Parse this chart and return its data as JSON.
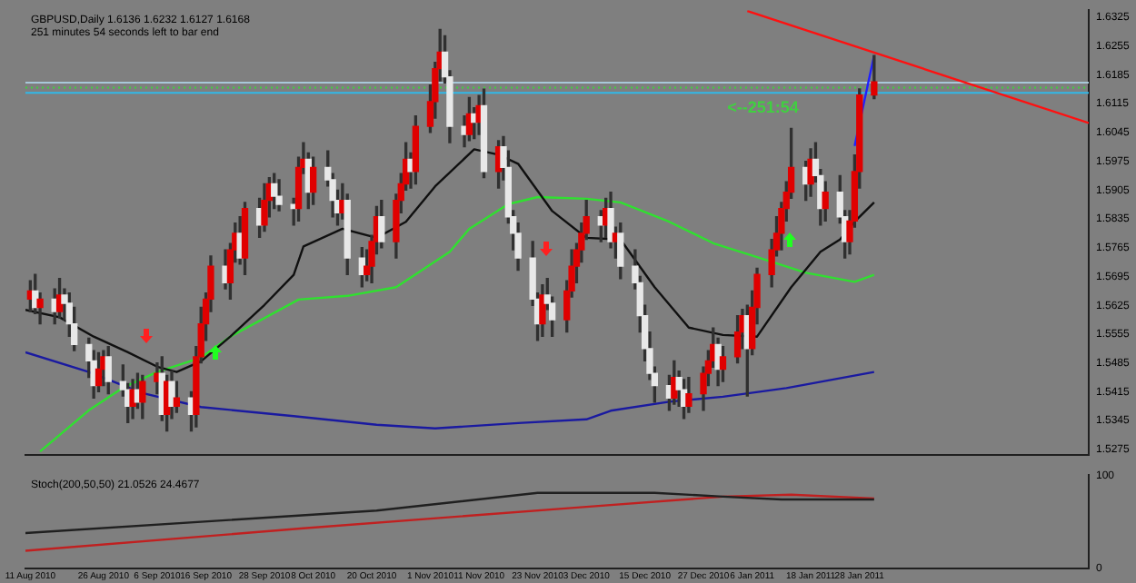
{
  "chart_data": [
    {
      "type": "candlestick",
      "title": "GBPUSD,Daily 1.6136 1.6232 1.6127 1.6168",
      "subtitle": "251 minutes 54 seconds left to bar end",
      "x": [
        "2010-08-11",
        "2010-08-12",
        "2010-08-13",
        "2010-08-16",
        "2010-08-17",
        "2010-08-18",
        "2010-08-19",
        "2010-08-20",
        "2010-08-23",
        "2010-08-24",
        "2010-08-25",
        "2010-08-26",
        "2010-08-27",
        "2010-08-30",
        "2010-08-31",
        "2010-09-01",
        "2010-09-02",
        "2010-09-03",
        "2010-09-06",
        "2010-09-07",
        "2010-09-08",
        "2010-09-09",
        "2010-09-10",
        "2010-09-13",
        "2010-09-14",
        "2010-09-15",
        "2010-09-16",
        "2010-09-17",
        "2010-09-20",
        "2010-09-21",
        "2010-09-22",
        "2010-09-23",
        "2010-09-24",
        "2010-09-27",
        "2010-09-28",
        "2010-09-29",
        "2010-09-30",
        "2010-10-01",
        "2010-10-04",
        "2010-10-05",
        "2010-10-06",
        "2010-10-07",
        "2010-10-08",
        "2010-10-11",
        "2010-10-12",
        "2010-10-13",
        "2010-10-14",
        "2010-10-15",
        "2010-10-18",
        "2010-10-19",
        "2010-10-20",
        "2010-10-21",
        "2010-10-22",
        "2010-10-25",
        "2010-10-26",
        "2010-10-27",
        "2010-10-28",
        "2010-10-29",
        "2010-11-01",
        "2010-11-02",
        "2010-11-03",
        "2010-11-04",
        "2010-11-05",
        "2010-11-08",
        "2010-11-09",
        "2010-11-10",
        "2010-11-11",
        "2010-11-12",
        "2010-11-15",
        "2010-11-16",
        "2010-11-17",
        "2010-11-18",
        "2010-11-19",
        "2010-11-22",
        "2010-11-23",
        "2010-11-24",
        "2010-11-25",
        "2010-11-26",
        "2010-11-29",
        "2010-11-30",
        "2010-12-01",
        "2010-12-02",
        "2010-12-03",
        "2010-12-06",
        "2010-12-07",
        "2010-12-08",
        "2010-12-09",
        "2010-12-10",
        "2010-12-13",
        "2010-12-14",
        "2010-12-15",
        "2010-12-16",
        "2010-12-17",
        "2010-12-20",
        "2010-12-21",
        "2010-12-22",
        "2010-12-23",
        "2010-12-24",
        "2010-12-27",
        "2010-12-28",
        "2010-12-29",
        "2010-12-30",
        "2010-12-31",
        "2011-01-03",
        "2011-01-04",
        "2011-01-05",
        "2011-01-06",
        "2011-01-07",
        "2011-01-10",
        "2011-01-11",
        "2011-01-12",
        "2011-01-13",
        "2011-01-14",
        "2011-01-17",
        "2011-01-18",
        "2011-01-19",
        "2011-01-20",
        "2011-01-21",
        "2011-01-24",
        "2011-01-25",
        "2011-01-26",
        "2011-01-27",
        "2011-01-28",
        "2011-01-31"
      ],
      "ohlc": [
        [
          1.564,
          1.5685,
          1.561,
          1.566
        ],
        [
          1.566,
          1.57,
          1.5605,
          1.562
        ],
        [
          1.562,
          1.5655,
          1.558,
          1.564
        ],
        [
          1.564,
          1.5665,
          1.558,
          1.561
        ],
        [
          1.561,
          1.569,
          1.5595,
          1.565
        ],
        [
          1.565,
          1.5665,
          1.559,
          1.563
        ],
        [
          1.563,
          1.5655,
          1.555,
          1.558
        ],
        [
          1.558,
          1.562,
          1.5515,
          1.553
        ],
        [
          1.553,
          1.5545,
          1.545,
          1.549
        ],
        [
          1.549,
          1.5515,
          1.54,
          1.543
        ],
        [
          1.543,
          1.551,
          1.5415,
          1.547
        ],
        [
          1.547,
          1.5515,
          1.543,
          1.55
        ],
        [
          1.55,
          1.5525,
          1.541,
          1.544
        ],
        [
          1.544,
          1.548,
          1.5405,
          1.542
        ],
        [
          1.542,
          1.5435,
          1.534,
          1.538
        ],
        [
          1.538,
          1.5445,
          1.535,
          1.542
        ],
        [
          1.542,
          1.546,
          1.5375,
          1.539
        ],
        [
          1.539,
          1.5455,
          1.535,
          1.544
        ],
        [
          1.544,
          1.5485,
          1.541,
          1.546
        ],
        [
          1.546,
          1.55,
          1.5345,
          1.536
        ],
        [
          1.536,
          1.5455,
          1.532,
          1.544
        ],
        [
          1.544,
          1.5465,
          1.535,
          1.538
        ],
        [
          1.538,
          1.544,
          1.5365,
          1.54
        ],
        [
          1.54,
          1.5415,
          1.532,
          1.536
        ],
        [
          1.536,
          1.5525,
          1.533,
          1.55
        ],
        [
          1.55,
          1.562,
          1.5485,
          1.558
        ],
        [
          1.558,
          1.5655,
          1.554,
          1.564
        ],
        [
          1.564,
          1.5745,
          1.561,
          1.572
        ],
        [
          1.572,
          1.576,
          1.5665,
          1.568
        ],
        [
          1.568,
          1.5775,
          1.564,
          1.576
        ],
        [
          1.576,
          1.5825,
          1.573,
          1.58
        ],
        [
          1.58,
          1.584,
          1.5725,
          1.574
        ],
        [
          1.574,
          1.5875,
          1.57,
          1.586
        ],
        [
          1.586,
          1.5885,
          1.579,
          1.582
        ],
        [
          1.582,
          1.592,
          1.5805,
          1.588
        ],
        [
          1.588,
          1.5935,
          1.584,
          1.592
        ],
        [
          1.592,
          1.5945,
          1.586,
          1.589
        ],
        [
          1.589,
          1.593,
          1.5855,
          1.587
        ],
        [
          1.587,
          1.5885,
          1.582,
          1.586
        ],
        [
          1.586,
          1.5985,
          1.583,
          1.596
        ],
        [
          1.596,
          1.602,
          1.5945,
          1.598
        ],
        [
          1.598,
          1.5995,
          1.586,
          1.59
        ],
        [
          1.59,
          1.5985,
          1.587,
          1.596
        ],
        [
          1.596,
          1.6,
          1.5915,
          1.593
        ],
        [
          1.593,
          1.5945,
          1.584,
          1.588
        ],
        [
          1.588,
          1.5905,
          1.582,
          1.585
        ],
        [
          1.585,
          1.592,
          1.5835,
          1.588
        ],
        [
          1.588,
          1.5895,
          1.57,
          1.574
        ],
        [
          1.574,
          1.5765,
          1.567,
          1.57
        ],
        [
          1.57,
          1.576,
          1.5685,
          1.572
        ],
        [
          1.572,
          1.5795,
          1.568,
          1.578
        ],
        [
          1.578,
          1.5865,
          1.575,
          1.584
        ],
        [
          1.584,
          1.588,
          1.5765,
          1.578
        ],
        [
          1.578,
          1.5895,
          1.574,
          1.588
        ],
        [
          1.588,
          1.5945,
          1.585,
          1.592
        ],
        [
          1.592,
          1.602,
          1.5905,
          1.598
        ],
        [
          1.598,
          1.5995,
          1.591,
          1.595
        ],
        [
          1.595,
          1.6085,
          1.592,
          1.606
        ],
        [
          1.606,
          1.616,
          1.6045,
          1.612
        ],
        [
          1.612,
          1.6215,
          1.608,
          1.62
        ],
        [
          1.62,
          1.6295,
          1.617,
          1.624
        ],
        [
          1.624,
          1.628,
          1.6165,
          1.618
        ],
        [
          1.618,
          1.6195,
          1.602,
          1.606
        ],
        [
          1.606,
          1.6085,
          1.601,
          1.604
        ],
        [
          1.604,
          1.613,
          1.6025,
          1.609
        ],
        [
          1.609,
          1.6105,
          1.603,
          1.607
        ],
        [
          1.607,
          1.6135,
          1.604,
          1.611
        ],
        [
          1.611,
          1.615,
          1.5935,
          1.595
        ],
        [
          1.595,
          1.6025,
          1.591,
          1.601
        ],
        [
          1.601,
          1.6035,
          1.593,
          1.596
        ],
        [
          1.596,
          1.6,
          1.5825,
          1.584
        ],
        [
          1.584,
          1.5855,
          1.576,
          1.58
        ],
        [
          1.58,
          1.5825,
          1.571,
          1.574
        ],
        [
          1.574,
          1.578,
          1.5625,
          1.564
        ],
        [
          1.564,
          1.5655,
          1.554,
          1.558
        ],
        [
          1.558,
          1.5675,
          1.555,
          1.565
        ],
        [
          1.565,
          1.569,
          1.5615,
          1.563
        ],
        [
          1.563,
          1.5645,
          1.555,
          1.559
        ],
        [
          1.559,
          1.5685,
          1.556,
          1.566
        ],
        [
          1.566,
          1.576,
          1.5645,
          1.572
        ],
        [
          1.572,
          1.5775,
          1.568,
          1.576
        ],
        [
          1.576,
          1.5825,
          1.573,
          1.58
        ],
        [
          1.58,
          1.588,
          1.5785,
          1.584
        ],
        [
          1.584,
          1.5855,
          1.578,
          1.582
        ],
        [
          1.582,
          1.5885,
          1.579,
          1.586
        ],
        [
          1.586,
          1.59,
          1.5765,
          1.578
        ],
        [
          1.578,
          1.5815,
          1.574,
          1.58
        ],
        [
          1.58,
          1.5825,
          1.569,
          1.572
        ],
        [
          1.572,
          1.576,
          1.5665,
          1.568
        ],
        [
          1.568,
          1.5695,
          1.556,
          1.56
        ],
        [
          1.56,
          1.5625,
          1.549,
          1.552
        ],
        [
          1.552,
          1.556,
          1.5445,
          1.546
        ],
        [
          1.546,
          1.5475,
          1.539,
          1.543
        ],
        [
          1.543,
          1.5455,
          1.537,
          1.54
        ],
        [
          1.54,
          1.549,
          1.5385,
          1.545
        ],
        [
          1.545,
          1.5465,
          1.538,
          1.542
        ],
        [
          1.542,
          1.5445,
          1.535,
          1.538
        ],
        [
          1.538,
          1.545,
          1.5365,
          1.541
        ],
        [
          1.541,
          1.5475,
          1.537,
          1.546
        ],
        [
          1.546,
          1.5515,
          1.543,
          1.549
        ],
        [
          1.549,
          1.557,
          1.5475,
          1.553
        ],
        [
          1.553,
          1.5545,
          1.543,
          1.547
        ],
        [
          1.547,
          1.5525,
          1.544,
          1.55
        ],
        [
          1.55,
          1.56,
          1.5485,
          1.556
        ],
        [
          1.556,
          1.5615,
          1.552,
          1.56
        ],
        [
          1.56,
          1.5625,
          1.5405,
          1.552
        ],
        [
          1.552,
          1.566,
          1.5505,
          1.562
        ],
        [
          1.562,
          1.5715,
          1.558,
          1.57
        ],
        [
          1.57,
          1.5785,
          1.567,
          1.576
        ],
        [
          1.576,
          1.584,
          1.5745,
          1.58
        ],
        [
          1.58,
          1.5875,
          1.576,
          1.586
        ],
        [
          1.586,
          1.5925,
          1.583,
          1.59
        ],
        [
          1.59,
          1.6055,
          1.5885,
          1.596
        ],
        [
          1.596,
          1.5975,
          1.588,
          1.592
        ],
        [
          1.592,
          1.6005,
          1.589,
          1.598
        ],
        [
          1.598,
          1.602,
          1.5925,
          1.594
        ],
        [
          1.594,
          1.5955,
          1.582,
          1.586
        ],
        [
          1.586,
          1.5925,
          1.583,
          1.59
        ],
        [
          1.59,
          1.594,
          1.5825,
          1.584
        ],
        [
          1.584,
          1.5855,
          1.574,
          1.578
        ],
        [
          1.578,
          1.5855,
          1.575,
          1.583
        ],
        [
          1.583,
          1.599,
          1.5815,
          1.595
        ],
        [
          1.595,
          1.6151,
          1.591,
          1.6136
        ],
        [
          1.6136,
          1.6232,
          1.6127,
          1.6168
        ]
      ],
      "series": [
        {
          "type": "line",
          "color": "#101010",
          "x": [
            "2010-08-10",
            "2010-08-17",
            "2010-08-24",
            "2010-08-31",
            "2010-09-06",
            "2010-09-10",
            "2010-09-15",
            "2010-09-21",
            "2010-09-28",
            "2010-10-04",
            "2010-10-06",
            "2010-10-14",
            "2010-10-21",
            "2010-10-27",
            "2010-11-02",
            "2010-11-10",
            "2010-11-15",
            "2010-11-19",
            "2010-11-26",
            "2010-12-03",
            "2010-12-10",
            "2010-12-17",
            "2010-12-24",
            "2010-12-31",
            "2011-01-07",
            "2011-01-14",
            "2011-01-20",
            "2011-01-24",
            "2011-01-27",
            "2011-01-31"
          ],
          "values": [
            1.5614,
            1.5596,
            1.5549,
            1.5511,
            1.5476,
            1.5463,
            1.5489,
            1.5549,
            1.5626,
            1.5699,
            1.5768,
            1.5811,
            1.5789,
            1.5828,
            1.5914,
            1.6004,
            1.5991,
            1.5969,
            1.5854,
            1.5789,
            1.5785,
            1.5669,
            1.5571,
            1.5553,
            1.5549,
            1.5669,
            1.5755,
            1.5785,
            1.5828,
            1.5875
          ]
        },
        {
          "type": "line",
          "color": "#30e030",
          "x": [
            "2010-08-13",
            "2010-08-23",
            "2010-08-30",
            "2010-09-06",
            "2010-09-15",
            "2010-09-21",
            "2010-10-05",
            "2010-10-15",
            "2010-10-25",
            "2010-11-05",
            "2010-11-09",
            "2010-11-17",
            "2010-11-23",
            "2010-12-03",
            "2010-12-10",
            "2010-12-20",
            "2010-12-29",
            "2011-01-07",
            "2011-01-17",
            "2011-01-27",
            "2011-01-31"
          ],
          "values": [
            1.527,
            1.537,
            1.5425,
            1.5463,
            1.5498,
            1.5549,
            1.5639,
            1.5648,
            1.5669,
            1.5755,
            1.5811,
            1.5871,
            1.5888,
            1.5884,
            1.5875,
            1.5828,
            1.5776,
            1.5742,
            1.5704,
            1.5682,
            1.5699
          ]
        },
        {
          "type": "line",
          "color": "#1a1aa0",
          "x": [
            "2010-08-10",
            "2010-08-23",
            "2010-09-03",
            "2010-09-15",
            "2010-10-04",
            "2010-10-21",
            "2010-11-02",
            "2010-11-19",
            "2010-12-03",
            "2010-12-08",
            "2010-12-20",
            "2010-12-31",
            "2011-01-13",
            "2011-01-31"
          ],
          "values": [
            1.5511,
            1.5463,
            1.5412,
            1.5378,
            1.5356,
            1.5335,
            1.5326,
            1.5339,
            1.5348,
            1.5369,
            1.5391,
            1.5403,
            1.5424,
            1.5463
          ]
        },
        {
          "type": "line",
          "color": "#ff1010",
          "x": [
            "2011-01-05",
            "2011-03-16"
          ],
          "values": [
            1.634,
            1.6068
          ]
        },
        {
          "type": "line",
          "color": "#2020ff",
          "x": [
            "2011-01-27",
            "2011-01-31"
          ],
          "values": [
            1.6012,
            1.6232
          ]
        }
      ],
      "ref_lines": [
        {
          "axis": "y",
          "value": 1.6166,
          "color": "#a8c8d8"
        },
        {
          "axis": "y",
          "value": 1.6141,
          "color": "#30b8e8"
        },
        {
          "axis": "y",
          "value": 1.6154,
          "color": "#40d040",
          "line_style": "dotted"
        }
      ],
      "annotations": [
        "<--251:54"
      ],
      "xlim": [
        "2010-08-10",
        "2011-03-16"
      ],
      "ylim": [
        1.5262,
        1.6342
      ],
      "yticks": [
        1.6325,
        1.6255,
        1.6185,
        1.6115,
        1.6045,
        1.5975,
        1.5905,
        1.5835,
        1.5765,
        1.5695,
        1.5625,
        1.5555,
        1.5485,
        1.5415,
        1.5345,
        1.5275
      ],
      "tick_labels": "y",
      "grid": false,
      "legend": false
    },
    {
      "type": "line",
      "title": "Stoch(200,50,50) 21.0526 24.4677",
      "series": [
        {
          "color": "#202020",
          "x": [
            "2010-08-10",
            "2010-10-21",
            "2010-11-23",
            "2010-12-17",
            "2010-12-31",
            "2011-01-12",
            "2011-01-31"
          ],
          "values": [
            38,
            62,
            81,
            81,
            77,
            74,
            74
          ]
        },
        {
          "color": "#c02020",
          "x": [
            "2010-08-10",
            "2010-10-06",
            "2010-12-03",
            "2010-12-31",
            "2011-01-14",
            "2011-01-31"
          ],
          "values": [
            19,
            43,
            66,
            77,
            79,
            75
          ]
        }
      ],
      "xlim": [
        "2010-08-10",
        "2011-03-16"
      ],
      "ylim": [
        0,
        100
      ],
      "yticks": [
        100,
        0
      ],
      "xticks": [
        {
          "value": "2010-08-11",
          "label": "11 Aug 2010"
        },
        {
          "value": "2010-08-26",
          "label": "26 Aug 2010"
        },
        {
          "value": "2010-09-06",
          "label": "6 Sep 2010"
        },
        {
          "value": "2010-09-16",
          "label": "16 Sep 2010"
        },
        {
          "value": "2010-09-28",
          "label": "28 Sep 2010"
        },
        {
          "value": "2010-10-08",
          "label": "8 Oct 2010"
        },
        {
          "value": "2010-10-20",
          "label": "20 Oct 2010"
        },
        {
          "value": "2010-11-01",
          "label": "1 Nov 2010"
        },
        {
          "value": "2010-11-11",
          "label": "11 Nov 2010"
        },
        {
          "value": "2010-11-23",
          "label": "23 Nov 2010"
        },
        {
          "value": "2010-12-03",
          "label": "3 Dec 2010"
        },
        {
          "value": "2010-12-15",
          "label": "15 Dec 2010"
        },
        {
          "value": "2010-12-27",
          "label": "27 Dec 2010"
        },
        {
          "value": "2011-01-06",
          "label": "6 Jan 2011"
        },
        {
          "value": "2011-01-18",
          "label": "18 Jan 2011"
        },
        {
          "value": "2011-01-28",
          "label": "28 Jan 2011"
        }
      ],
      "grid": false,
      "legend": false
    }
  ]
}
